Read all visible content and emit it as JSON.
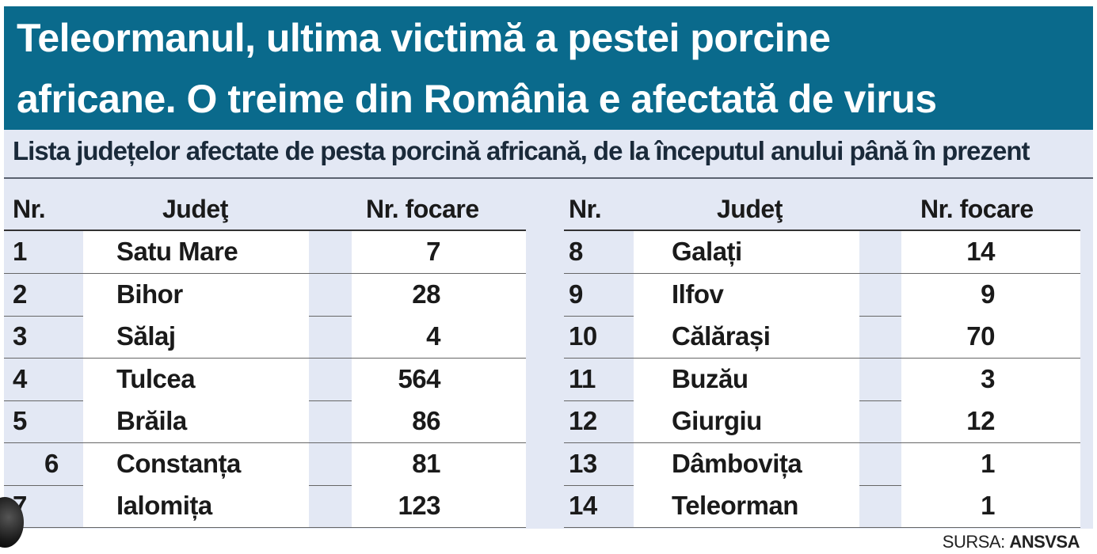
{
  "header": {
    "title_line1": "Teleormanul, ultima victimă a pestei porcine",
    "title_line2": "africane. O treime din România e afectată de virus",
    "bg_color": "#0a6a8c"
  },
  "subtitle": "Lista județelor afectate de pesta porcină africană, de la începutul anului până în prezent",
  "table": {
    "headers": {
      "nr": "Nr.",
      "judet": "Judeţ",
      "focare": "Nr. focare"
    },
    "left": [
      {
        "nr": "1",
        "judet": "Satu Mare",
        "focare": "7"
      },
      {
        "nr": "2",
        "judet": "Bihor",
        "focare": "28"
      },
      {
        "nr": "3",
        "judet": "Sălaj",
        "focare": "4"
      },
      {
        "nr": "4",
        "judet": "Tulcea",
        "focare": "564"
      },
      {
        "nr": "5",
        "judet": "Brăila",
        "focare": "86"
      },
      {
        "nr": "6",
        "judet": "Constanța",
        "focare": "81"
      },
      {
        "nr": "7",
        "judet": "Ialomița",
        "focare": "123"
      }
    ],
    "right": [
      {
        "nr": "8",
        "judet": "Galați",
        "focare": "14"
      },
      {
        "nr": "9",
        "judet": "Ilfov",
        "focare": "9"
      },
      {
        "nr": "10",
        "judet": "Călărași",
        "focare": "70"
      },
      {
        "nr": "11",
        "judet": "Buzău",
        "focare": "3"
      },
      {
        "nr": "12",
        "judet": "Giurgiu",
        "focare": "12"
      },
      {
        "nr": "13",
        "judet": "Dâmbovița",
        "focare": "1"
      },
      {
        "nr": "14",
        "judet": "Teleorman",
        "focare": "1"
      }
    ]
  },
  "source": {
    "label": "SURSA:",
    "name": "ANSVSA"
  }
}
